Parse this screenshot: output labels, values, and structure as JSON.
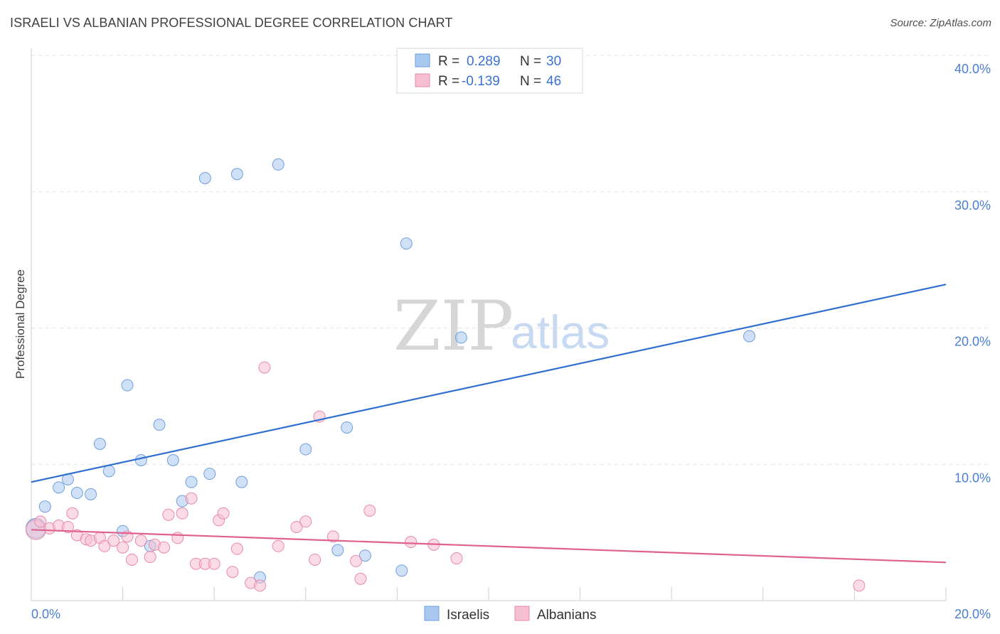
{
  "title": "ISRAELI VS ALBANIAN PROFESSIONAL DEGREE CORRELATION CHART",
  "source": "Source: ZipAtlas.com",
  "chart_data": {
    "type": "scatter",
    "title": "ISRAELI VS ALBANIAN PROFESSIONAL DEGREE CORRELATION CHART",
    "xlabel": "",
    "ylabel": "Professional Degree",
    "xlim": [
      0,
      20
    ],
    "ylim": [
      0,
      40
    ],
    "x_tick_labels": [
      {
        "value": 0,
        "label": "0.0%"
      },
      {
        "value": 20,
        "label": "20.0%"
      }
    ],
    "y_tick_labels": [
      {
        "value": 10,
        "label": "10.0%"
      },
      {
        "value": 20,
        "label": "20.0%"
      },
      {
        "value": 30,
        "label": "30.0%"
      },
      {
        "value": 40,
        "label": "40.0%"
      }
    ],
    "legend_position": "top-center",
    "watermark": {
      "zip": "ZIP",
      "atlas": "atlas"
    },
    "series": [
      {
        "name": "Israelis",
        "color": "#a9c8f0",
        "stroke": "#6f9fde",
        "line_color": "#2f6fcf",
        "R_label": "R =",
        "R": "0.289",
        "N_label": "N =",
        "N": "30",
        "trend": {
          "x0": 0,
          "y0": 8.7,
          "x1": 20,
          "y1": 23.2
        },
        "points": [
          {
            "x": 0.1,
            "y": 5.3,
            "big": true
          },
          {
            "x": 0.3,
            "y": 6.9
          },
          {
            "x": 0.6,
            "y": 8.3
          },
          {
            "x": 0.8,
            "y": 8.9
          },
          {
            "x": 1.0,
            "y": 7.9
          },
          {
            "x": 1.3,
            "y": 7.8
          },
          {
            "x": 1.5,
            "y": 11.5
          },
          {
            "x": 1.7,
            "y": 9.5
          },
          {
            "x": 2.0,
            "y": 5.1
          },
          {
            "x": 2.1,
            "y": 15.8
          },
          {
            "x": 2.4,
            "y": 10.3
          },
          {
            "x": 2.6,
            "y": 4.0
          },
          {
            "x": 2.8,
            "y": 12.9
          },
          {
            "x": 3.1,
            "y": 10.3
          },
          {
            "x": 3.3,
            "y": 7.3
          },
          {
            "x": 3.5,
            "y": 8.7
          },
          {
            "x": 3.8,
            "y": 31.0
          },
          {
            "x": 3.9,
            "y": 9.3
          },
          {
            "x": 4.5,
            "y": 31.3
          },
          {
            "x": 4.6,
            "y": 8.7
          },
          {
            "x": 5.0,
            "y": 1.7
          },
          {
            "x": 5.4,
            "y": 32.0
          },
          {
            "x": 6.0,
            "y": 11.1
          },
          {
            "x": 6.7,
            "y": 3.7
          },
          {
            "x": 6.9,
            "y": 12.7
          },
          {
            "x": 7.3,
            "y": 3.3
          },
          {
            "x": 8.1,
            "y": 2.2
          },
          {
            "x": 8.2,
            "y": 26.2
          },
          {
            "x": 9.4,
            "y": 19.3
          },
          {
            "x": 15.7,
            "y": 19.4
          }
        ]
      },
      {
        "name": "Albanians",
        "color": "#f7bfd2",
        "stroke": "#e98aab",
        "line_color": "#e0608e",
        "R_label": "R =",
        "R": "-0.139",
        "N_label": "N =",
        "N": "46",
        "trend": {
          "x0": 0,
          "y0": 5.2,
          "x1": 20,
          "y1": 2.8
        },
        "points": [
          {
            "x": 0.1,
            "y": 5.2,
            "big": true
          },
          {
            "x": 0.2,
            "y": 5.8
          },
          {
            "x": 0.4,
            "y": 5.3
          },
          {
            "x": 0.6,
            "y": 5.5
          },
          {
            "x": 0.8,
            "y": 5.4
          },
          {
            "x": 0.9,
            "y": 6.4
          },
          {
            "x": 1.0,
            "y": 4.8
          },
          {
            "x": 1.2,
            "y": 4.5
          },
          {
            "x": 1.3,
            "y": 4.4
          },
          {
            "x": 1.5,
            "y": 4.6
          },
          {
            "x": 1.6,
            "y": 4.0
          },
          {
            "x": 1.8,
            "y": 4.4
          },
          {
            "x": 2.0,
            "y": 3.9
          },
          {
            "x": 2.1,
            "y": 4.7
          },
          {
            "x": 2.2,
            "y": 3.0
          },
          {
            "x": 2.4,
            "y": 4.4
          },
          {
            "x": 2.6,
            "y": 3.2
          },
          {
            "x": 2.7,
            "y": 4.1
          },
          {
            "x": 2.9,
            "y": 3.9
          },
          {
            "x": 3.0,
            "y": 6.3
          },
          {
            "x": 3.2,
            "y": 4.6
          },
          {
            "x": 3.3,
            "y": 6.4
          },
          {
            "x": 3.5,
            "y": 7.5
          },
          {
            "x": 3.6,
            "y": 2.7
          },
          {
            "x": 3.8,
            "y": 2.7
          },
          {
            "x": 4.0,
            "y": 2.7
          },
          {
            "x": 4.1,
            "y": 5.9
          },
          {
            "x": 4.2,
            "y": 6.4
          },
          {
            "x": 4.4,
            "y": 2.1
          },
          {
            "x": 4.5,
            "y": 3.8
          },
          {
            "x": 4.8,
            "y": 1.3
          },
          {
            "x": 5.0,
            "y": 1.1
          },
          {
            "x": 5.1,
            "y": 17.1
          },
          {
            "x": 5.4,
            "y": 4.0
          },
          {
            "x": 5.8,
            "y": 5.4
          },
          {
            "x": 6.0,
            "y": 5.8
          },
          {
            "x": 6.2,
            "y": 3.0
          },
          {
            "x": 6.3,
            "y": 13.5
          },
          {
            "x": 6.6,
            "y": 4.7
          },
          {
            "x": 7.1,
            "y": 2.9
          },
          {
            "x": 7.2,
            "y": 1.6
          },
          {
            "x": 7.4,
            "y": 6.6
          },
          {
            "x": 8.3,
            "y": 4.3
          },
          {
            "x": 8.8,
            "y": 4.1
          },
          {
            "x": 9.3,
            "y": 3.1
          },
          {
            "x": 18.1,
            "y": 1.1
          }
        ]
      }
    ]
  }
}
